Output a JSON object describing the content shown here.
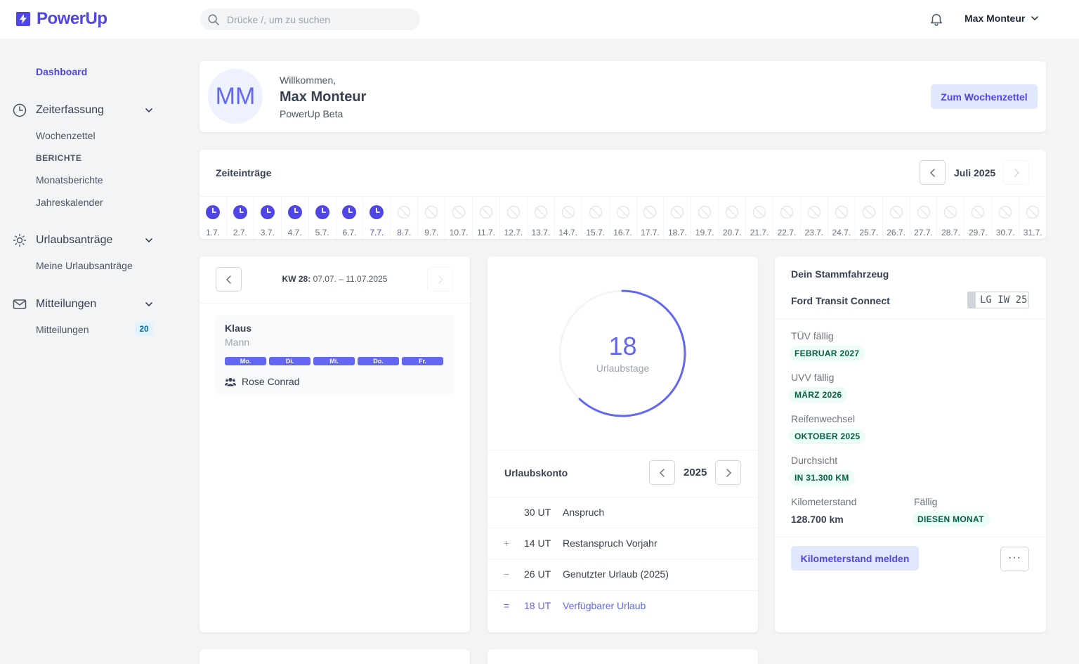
{
  "app": {
    "name": "PowerUp",
    "brand_color": "#4f46e5",
    "logo_icon": "bolt-square-icon"
  },
  "search": {
    "placeholder": "Drücke /, um zu suchen"
  },
  "user": {
    "name": "Max Monteur"
  },
  "sidebar": {
    "dashboard": "Dashboard",
    "zeiterfassung": {
      "label": "Zeiterfassung",
      "items": [
        "Wochenzettel"
      ],
      "section": "BERICHTE",
      "report_items": [
        "Monatsberichte",
        "Jahreskalender"
      ]
    },
    "urlaub": {
      "label": "Urlaubsanträge",
      "items": [
        "Meine Urlaubsanträge"
      ]
    },
    "mitteilungen": {
      "label": "Mitteilungen",
      "items": [
        "Mitteilungen"
      ],
      "count": "20"
    }
  },
  "welcome": {
    "initials": "MM",
    "greeting": "Willkommen,",
    "name": "Max Monteur",
    "subtitle": "PowerUp Beta",
    "button": "Zum Wochenzettel"
  },
  "zeiteintraege": {
    "title": "Zeiteinträge",
    "month": "Juli 2025",
    "days": [
      {
        "label": "1.7.",
        "status": "filled"
      },
      {
        "label": "2.7.",
        "status": "filled"
      },
      {
        "label": "3.7.",
        "status": "filled"
      },
      {
        "label": "4.7.",
        "status": "filled"
      },
      {
        "label": "5.7.",
        "status": "filled"
      },
      {
        "label": "6.7.",
        "status": "filled"
      },
      {
        "label": "7.7.",
        "status": "today"
      },
      {
        "label": "8.7.",
        "status": "empty"
      },
      {
        "label": "9.7.",
        "status": "empty"
      },
      {
        "label": "10.7.",
        "status": "empty"
      },
      {
        "label": "11.7.",
        "status": "empty"
      },
      {
        "label": "12.7.",
        "status": "empty"
      },
      {
        "label": "13.7.",
        "status": "empty"
      },
      {
        "label": "14.7.",
        "status": "empty"
      },
      {
        "label": "15.7.",
        "status": "empty"
      },
      {
        "label": "16.7.",
        "status": "empty"
      },
      {
        "label": "17.7.",
        "status": "empty"
      },
      {
        "label": "18.7.",
        "status": "empty"
      },
      {
        "label": "19.7.",
        "status": "empty"
      },
      {
        "label": "20.7.",
        "status": "empty"
      },
      {
        "label": "21.7.",
        "status": "empty"
      },
      {
        "label": "22.7.",
        "status": "empty"
      },
      {
        "label": "23.7.",
        "status": "empty"
      },
      {
        "label": "24.7.",
        "status": "empty"
      },
      {
        "label": "25.7.",
        "status": "empty"
      },
      {
        "label": "26.7.",
        "status": "empty"
      },
      {
        "label": "27.7.",
        "status": "empty"
      },
      {
        "label": "28.7.",
        "status": "empty"
      },
      {
        "label": "29.7.",
        "status": "empty"
      },
      {
        "label": "30.7.",
        "status": "empty"
      },
      {
        "label": "31.7.",
        "status": "empty"
      }
    ]
  },
  "week": {
    "kw": "KW 28:",
    "range": "07.07. – 11.07.2025",
    "employee": {
      "name": "Klaus",
      "role": "Mann",
      "days": [
        "Mo.",
        "Di.",
        "Mi.",
        "Do.",
        "Fr."
      ],
      "team": "Rose Conrad"
    }
  },
  "urlaub": {
    "remaining": "18",
    "remaining_label": "Urlaubstage",
    "progress_fraction": 0.62,
    "konto_title": "Urlaubskonto",
    "year": "2025",
    "rows": [
      {
        "sym": "",
        "value": "30 UT",
        "text": "Anspruch"
      },
      {
        "sym": "+",
        "value": "14 UT",
        "text": "Restanspruch Vorjahr"
      },
      {
        "sym": "−",
        "value": "26 UT",
        "text": "Genutzter Urlaub (2025)"
      },
      {
        "sym": "=",
        "value": "18 UT",
        "text": "Verfügbarer Urlaub"
      }
    ]
  },
  "fahrzeug": {
    "title": "Dein Stammfahrzeug",
    "model": "Ford Transit Connect",
    "plate": "LG IW 25",
    "tuev": {
      "label": "TÜV fällig",
      "value": "FEBRUAR 2027"
    },
    "uvv": {
      "label": "UVV fällig",
      "value": "MÄRZ 2026"
    },
    "reifen": {
      "label": "Reifenwechsel",
      "value": "OKTOBER 2025"
    },
    "durchsicht": {
      "label": "Durchsicht",
      "value": "IN 31.300 KM"
    },
    "km": {
      "label": "Kilometerstand",
      "value": "128.700 km"
    },
    "faellig": {
      "label": "Fällig",
      "value": "DIESEN MONAT"
    },
    "button": "Kilometerstand melden",
    "more": "···"
  }
}
